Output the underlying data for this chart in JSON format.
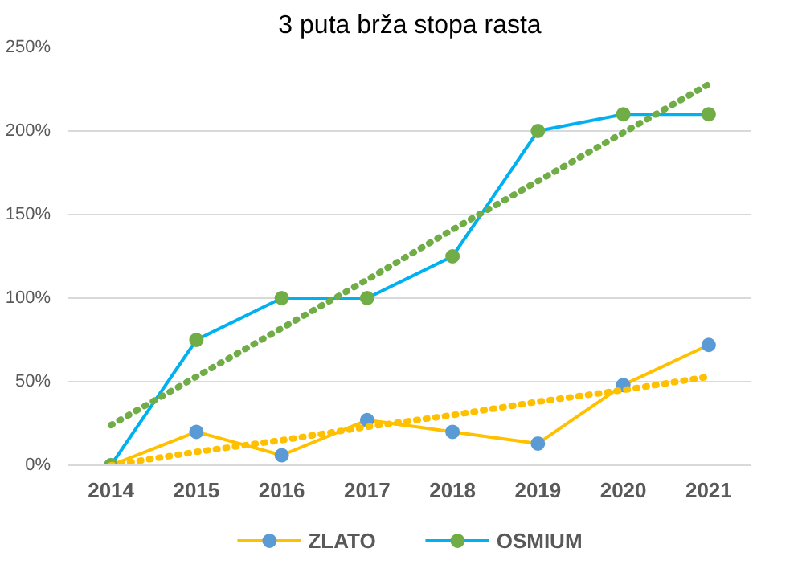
{
  "chart_data": {
    "type": "line",
    "title": "3 puta brža stopa rasta",
    "categories": [
      "2014",
      "2015",
      "2016",
      "2017",
      "2018",
      "2019",
      "2020",
      "2021"
    ],
    "series": [
      {
        "name": "ZLATO",
        "color": "#ffc000",
        "colors": [
          "#5b9bd5",
          "#5b9bd5",
          "#5b9bd5",
          "#5b9bd5",
          "#5b9bd5",
          "#5b9bd5",
          "#5b9bd5",
          "#5b9bd5"
        ],
        "marker": "circle",
        "values": [
          0,
          20,
          6,
          27,
          20,
          13,
          48,
          72
        ]
      },
      {
        "name": "OSMIUM",
        "color": "#00b0f0",
        "colors": [
          "#70ad47",
          "#70ad47",
          "#70ad47",
          "#70ad47",
          "#70ad47",
          "#70ad47",
          "#70ad47",
          "#70ad47"
        ],
        "marker": "circle",
        "values": [
          0,
          75,
          100,
          100,
          125,
          200,
          210,
          210
        ]
      },
      {
        "type": "line",
        "color": "#ffc000",
        "line_style": "dotted",
        "marker": "none",
        "values": [
          0,
          8,
          15,
          23,
          30,
          38,
          45,
          53
        ]
      },
      {
        "type": "line",
        "color": "#70ad47",
        "line_style": "dotted",
        "marker": "none",
        "values": [
          24,
          53,
          82,
          111,
          141,
          170,
          199,
          228
        ]
      }
    ],
    "ylim": [
      0,
      250
    ],
    "yticks": [
      {
        "value": 0,
        "label": "0%"
      },
      {
        "value": 50,
        "label": "50%"
      },
      {
        "value": 100,
        "label": "100%"
      },
      {
        "value": 150,
        "label": "150%"
      },
      {
        "value": 200,
        "label": "200%"
      },
      {
        "value": 250,
        "label": "250%"
      }
    ],
    "grid": "y",
    "legend": "bottom"
  }
}
